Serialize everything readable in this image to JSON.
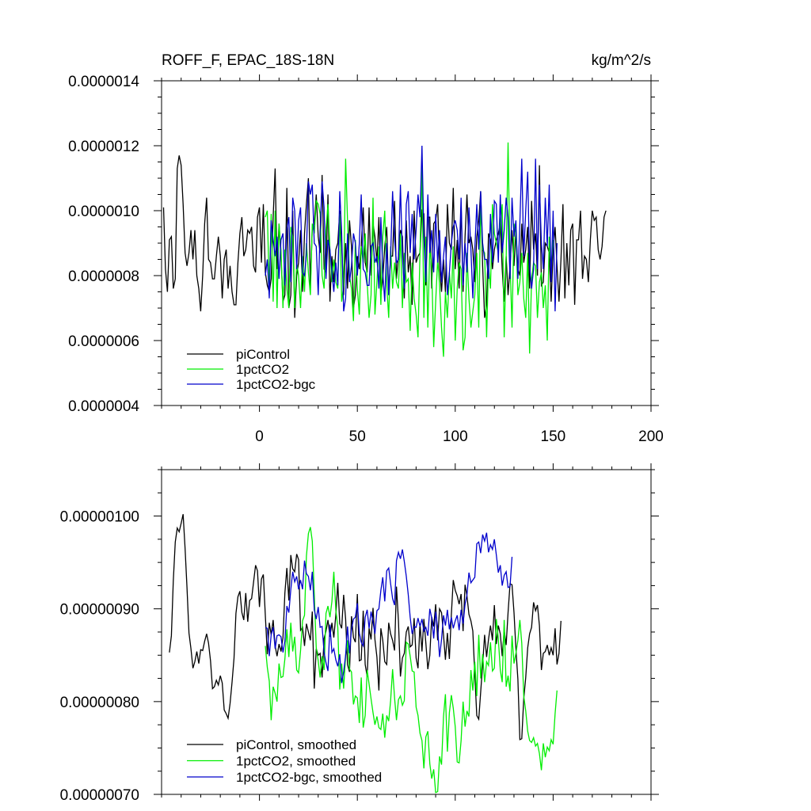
{
  "header": {
    "title": "ROFF_F, EPAC_18S-18N",
    "units": "kg/m^2/s"
  },
  "chart_data": [
    {
      "type": "line",
      "title": "ROFF_F, EPAC_18S-18N",
      "units": "kg/m^2/s",
      "xlim": [
        -50,
        200
      ],
      "ylim": [
        4e-07,
        1.4e-06
      ],
      "x_ticks": [
        0,
        50,
        100,
        150,
        200
      ],
      "x_tick_labels": [
        "0",
        "50",
        "100",
        "150",
        "200"
      ],
      "y_ticks": [
        4e-07,
        6e-07,
        8e-07,
        1e-06,
        1.2e-06,
        1.4e-06
      ],
      "y_tick_labels": [
        "0.0000004",
        "0.0000006",
        "0.0000008",
        "0.0000010",
        "0.0000012",
        "0.0000014"
      ],
      "legend_position": "bottom-left",
      "series": [
        {
          "name": "piControl",
          "color": "#000000",
          "x_start": -49,
          "x_step": 1,
          "values": [
            10.1,
            8.2,
            7.5,
            9.1,
            9.2,
            7.6,
            7.9,
            11.3,
            11.7,
            11.4,
            10.2,
            8.7,
            8.3,
            8.7,
            9.4,
            8.5,
            9.4,
            8.0,
            7.6,
            6.9,
            8.0,
            9.6,
            10.4,
            8.5,
            8.4,
            7.9,
            7.9,
            8.6,
            9.2,
            8.6,
            7.3,
            8.5,
            8.8,
            7.6,
            8.3,
            7.5,
            7.1,
            7.1,
            8.4,
            9.3,
            9.8,
            8.6,
            8.8,
            9.4,
            9.3,
            9.5,
            8.3,
            8.1,
            9.8,
            10.1,
            8.4,
            10.2,
            8.1,
            7.7,
            7.5,
            7.9,
            9.8,
            11.3,
            8.2,
            9.6,
            8.6,
            7.2,
            7.4,
            10.7,
            7.0,
            7.4,
            10.0,
            6.7,
            8.0,
            8.4,
            9.4,
            7.5,
            9.3,
            10.2,
            11.0,
            7.6,
            9.5,
            9.6,
            10.5,
            9.2,
            8.7,
            11.1,
            8.2,
            8.1,
            10.5,
            7.2,
            8.6,
            7.8,
            8.8,
            9.0,
            10.0,
            9.0,
            7.4,
            9.0,
            7.6,
            9.7,
            8.9,
            7.0,
            7.4,
            8.6,
            8.2,
            8.9,
            10.1,
            8.4,
            8.1,
            10.1,
            8.0,
            9.6,
            9.2,
            8.4,
            9.8,
            7.4,
            7.9,
            8.9,
            9.5,
            7.4,
            8.6,
            8.6,
            10.3,
            7.9,
            8.6,
            9.4,
            9.2,
            7.3,
            9.7,
            8.1,
            8.6,
            7.1,
            10.0,
            8.4,
            8.6,
            8.7,
            10.0,
            9.9,
            7.7,
            9.8,
            9.8,
            7.6,
            9.6,
            9.7,
            10.2,
            8.3,
            7.5,
            8.5,
            7.5,
            10.2,
            9.0,
            8.8,
            10.7,
            8.2,
            9.1,
            7.6,
            10.2,
            7.5,
            9.2,
            10.5,
            9.0,
            9.2,
            8.8,
            7.8,
            9.2,
            9.7,
            10.6,
            8.3,
            6.7,
            7.1,
            9.3,
            9.1,
            8.2,
            8.8,
            9.1,
            9.3,
            9.6,
            8.2,
            7.2,
            8.6,
            7.4,
            8.3,
            9.4,
            8.3,
            9.4,
            8.2,
            8.0,
            9.6,
            8.4,
            8.8,
            9.5,
            7.6,
            10.3,
            8.8,
            9.3,
            8.0,
            11.4,
            7.7,
            7.8,
            9.0,
            8.9,
            8.7,
            7.2,
            8.8,
            9.5,
            8.3,
            7.2,
            8.5,
            10.2,
            7.3,
            9.0,
            7.7,
            9.4,
            9.6,
            7.1,
            9.1,
            9.1,
            10.0,
            7.9,
            8.6,
            8.5,
            7.8,
            9.1,
            10.0,
            9.7,
            9.8,
            8.8,
            8.5,
            8.9,
            9.8,
            10.0
          ],
          "note": "values in units of 1e-7 kg/m^2/s"
        },
        {
          "name": "1pctCO2",
          "color": "#00ee00",
          "x_start": 3,
          "x_step": 1,
          "values": [
            9.8,
            10.0,
            7.5,
            9.9,
            7.2,
            10.0,
            7.0,
            9.6,
            8.8,
            7.0,
            8.8,
            7.6,
            7.0,
            9.5,
            9.2,
            7.0,
            8.4,
            8.0,
            7.0,
            8.6,
            7.5,
            9.0,
            8.1,
            7.4,
            9.6,
            9.3,
            10.3,
            10.2,
            9.9,
            8.0,
            7.6,
            9.4,
            10.2,
            8.8,
            7.8,
            8.5,
            7.8,
            7.6,
            9.9,
            7.2,
            7.7,
            11.6,
            9.7,
            8.0,
            7.6,
            6.6,
            9.1,
            7.6,
            6.8,
            8.9,
            8.4,
            9.3,
            7.8,
            6.7,
            7.4,
            10.4,
            6.8,
            7.8,
            8.9,
            7.1,
            9.2,
            10.0,
            7.7,
            6.7,
            8.9,
            7.6,
            8.4,
            7.8,
            7.6,
            9.3,
            7.0,
            8.7,
            7.8,
            7.9,
            6.3,
            8.4,
            7.3,
            6.8,
            6.1,
            8.7,
            11.4,
            6.7,
            9.2,
            6.4,
            8.9,
            8.2,
            5.8,
            7.2,
            8.5,
            7.7,
            6.4,
            5.5,
            7.5,
            6.7,
            8.1,
            7.3,
            8.9,
            6.0,
            7.6,
            8.4,
            8.2,
            5.7,
            6.1,
            8.7,
            7.3,
            6.4,
            6.9,
            7.4,
            8.7,
            6.4,
            10.2,
            8.8,
            8.7,
            6.1,
            8.3,
            7.6,
            10.2,
            9.3,
            9.0,
            8.7,
            9.6,
            10.2,
            6.1,
            8.5,
            12.1,
            8.4,
            6.4,
            9.6,
            9.3,
            7.4,
            7.8,
            8.7,
            7.3,
            6.7,
            8.7,
            5.6,
            7.9,
            8.4,
            8.3,
            6.7,
            7.8,
            8.1,
            7.0,
            7.7,
            6.0,
            9.2,
            8.2,
            9.1
          ]
        },
        {
          "name": "1pctCO2-bgc",
          "color": "#0000cc",
          "x_start": 3,
          "x_step": 1,
          "values": [
            8.0,
            8.5,
            7.3,
            9.7,
            9.1,
            8.6,
            9.2,
            7.9,
            9.1,
            9.3,
            7.7,
            9.4,
            9.8,
            7.8,
            10.4,
            10.0,
            8.2,
            9.7,
            10.1,
            8.1,
            8.0,
            8.7,
            10.9,
            10.5,
            10.8,
            9.0,
            8.9,
            7.4,
            9.4,
            10.9,
            10.1,
            7.9,
            9.1,
            8.8,
            8.1,
            7.5,
            8.4,
            7.7,
            10.6,
            9.3,
            6.9,
            7.3,
            9.3,
            7.8,
            8.3,
            9.3,
            9.0,
            8.0,
            9.0,
            10.5,
            8.2,
            8.1,
            7.7,
            7.7,
            8.9,
            9.0,
            8.4,
            8.6,
            7.6,
            9.8,
            8.1,
            7.2,
            9.0,
            7.4,
            8.6,
            10.6,
            9.1,
            8.4,
            8.5,
            10.8,
            8.6,
            7.6,
            10.2,
            10.6,
            8.7,
            9.9,
            8.5,
            9.4,
            10.5,
            9.8,
            12.0,
            9.2,
            7.8,
            10.5,
            8.7,
            9.4,
            8.1,
            9.9,
            8.4,
            9.4,
            7.8,
            8.6,
            9.2,
            7.4,
            8.1,
            9.0,
            9.5,
            9.7,
            9.4,
            8.5,
            10.4,
            7.7,
            9.0,
            8.1,
            10.1,
            8.8,
            7.3,
            8.8,
            10.2,
            8.8,
            10.6,
            9.0,
            8.5,
            8.5,
            7.9,
            9.9,
            8.4,
            10.3,
            10.2,
            8.4,
            10.5,
            8.7,
            9.4,
            10.4,
            9.8,
            7.9,
            10.4,
            9.2,
            9.7,
            7.9,
            9.6,
            11.6,
            8.6,
            10.0,
            11.2,
            8.3,
            7.6,
            8.2,
            11.6,
            8.2,
            10.8,
            9.0,
            8.2,
            10.4,
            8.9,
            10.8,
            7.8,
            10.0,
            6.9,
            9.0
          ]
        }
      ]
    },
    {
      "type": "line",
      "title": "",
      "xlim": [
        -50,
        200
      ],
      "ylim": [
        7e-07,
        1.05e-06
      ],
      "x_ticks": [
        0,
        50,
        100,
        150,
        200
      ],
      "y_ticks": [
        7e-07,
        8e-07,
        9e-07,
        1e-06
      ],
      "y_tick_labels": [
        "0.00000070",
        "0.00000080",
        "0.00000090",
        "0.00000100"
      ],
      "legend_position": "bottom-left",
      "series": [
        {
          "name": "piControl, smoothed",
          "color": "#000000",
          "x_start": -46,
          "x_step": 1,
          "values": [
            8.53,
            8.71,
            9.3,
            9.72,
            9.87,
            9.83,
            9.92,
            10.02,
            9.65,
            9.23,
            8.74,
            8.57,
            8.36,
            8.43,
            8.54,
            8.41,
            8.56,
            8.55,
            8.65,
            8.73,
            8.63,
            8.44,
            8.14,
            8.16,
            8.23,
            8.18,
            8.28,
            8.2,
            7.91,
            7.87,
            7.82,
            7.98,
            8.21,
            8.47,
            8.95,
            9.13,
            9.19,
            8.96,
            8.88,
            9.17,
            8.86,
            9.09,
            9.11,
            9.29,
            9.47,
            9.41,
            9.02,
            9.32,
            9.37,
            8.93,
            8.51,
            8.85,
            8.72,
            8.88,
            8.6,
            8.49,
            8.62,
            8.54,
            8.69,
            9.17,
            9.44,
            9.09,
            9.58,
            9.43,
            9.4,
            9.59,
            9.53,
            8.77,
            8.8,
            8.6,
            8.84,
            8.75,
            8.66,
            8.97,
            8.14,
            8.57,
            8.5,
            8.52,
            8.26,
            8.68,
            8.76,
            8.88,
            8.7,
            8.85,
            8.69,
            8.93,
            9.28,
            8.84,
            8.79,
            9.15,
            8.89,
            8.4,
            8.32,
            8.92,
            8.69,
            8.64,
            9.16,
            8.44,
            8.45,
            8.98,
            8.4,
            8.27,
            8.79,
            8.67,
            9.01,
            8.67,
            8.48,
            8.12,
            8.79,
            8.66,
            8.43,
            8.4,
            8.85,
            8.73,
            8.66,
            8.55,
            9.24,
            8.87,
            8.27,
            8.47,
            8.52,
            8.75,
            8.81,
            8.59,
            8.61,
            8.9,
            8.47,
            8.36,
            8.84,
            8.54,
            8.89,
            8.63,
            8.35,
            8.5,
            8.91,
            8.81,
            9.05,
            8.66,
            9.0,
            8.96,
            8.72,
            8.45,
            8.74,
            8.46,
            8.94,
            9.31,
            9.2,
            9.14,
            9.05,
            9.16,
            8.76,
            9.26,
            9.14,
            8.94,
            8.87,
            8.76,
            8.29,
            7.85,
            7.81,
            8.1,
            8.4,
            8.72,
            8.48,
            8.67,
            8.82,
            8.66,
            9.04,
            8.62,
            8.82,
            8.73,
            8.49,
            8.77,
            8.61,
            8.96,
            9.27,
            9.26,
            8.96,
            8.57,
            8.24,
            7.59,
            7.6,
            8.03,
            8.26,
            8.58,
            8.73,
            8.8,
            9.07,
            8.98,
            9.04,
            8.82,
            8.34,
            8.52,
            8.54,
            8.61,
            8.5,
            8.58,
            8.5,
            8.79,
            8.4,
            8.52,
            8.87
          ]
        },
        {
          "name": "1pctCO2, smoothed",
          "color": "#00ee00",
          "x_start": 3,
          "x_step": 1,
          "values": [
            8.6,
            8.37,
            8.22,
            7.8,
            8.16,
            8.09,
            8.0,
            8.41,
            8.26,
            8.27,
            8.46,
            8.78,
            8.48,
            8.85,
            8.54,
            8.7,
            8.34,
            8.31,
            8.55,
            8.87,
            8.93,
            9.57,
            9.81,
            9.88,
            9.73,
            9.16,
            8.58,
            8.44,
            8.26,
            8.49,
            8.34,
            8.95,
            9.03,
            8.91,
            9.08,
            9.4,
            8.99,
            8.8,
            8.13,
            8.41,
            8.14,
            8.5,
            8.66,
            8.35,
            8.32,
            7.97,
            8.06,
            8.04,
            7.77,
            8.26,
            7.72,
            7.85,
            8.34,
            8.19,
            8.03,
            7.88,
            7.75,
            7.84,
            7.72,
            7.7,
            7.87,
            7.61,
            7.85,
            7.79,
            8.01,
            8.35,
            8.04,
            7.8,
            8.02,
            8.06,
            7.96,
            8.01,
            8.64,
            8.62,
            8.49,
            8.33,
            8.32,
            7.94,
            7.85,
            7.66,
            7.58,
            7.28,
            7.62,
            7.68,
            7.33,
            7.17,
            7.27,
            7.02,
            7.03,
            7.41,
            7.32,
            7.84,
            8.08,
            7.46,
            7.88,
            8.07,
            7.93,
            7.73,
            7.35,
            7.34,
            7.58,
            8.0,
            7.73,
            7.9,
            7.84,
            8.34,
            8.12,
            8.43,
            8.06,
            8.72,
            8.25,
            8.51,
            8.21,
            8.43,
            8.39,
            8.64,
            8.33,
            8.36,
            8.89,
            8.68,
            8.34,
            8.21,
            8.88,
            8.16,
            8.28,
            8.11,
            8.71,
            8.41,
            8.52,
            8.66,
            8.88,
            8.63,
            8.06,
            7.9,
            7.68,
            7.58,
            7.56,
            7.61,
            7.52,
            7.55,
            7.44,
            7.26,
            7.55,
            7.4,
            7.51,
            7.47,
            7.59,
            7.54,
            7.87,
            8.12
          ]
        },
        {
          "name": "1pctCO2-bgc, smoothed",
          "color": "#0000cc",
          "x_start": 3,
          "x_step": 1,
          "values": [
            8.8,
            8.79,
            8.49,
            8.72,
            8.8,
            8.57,
            8.71,
            8.72,
            8.7,
            8.53,
            8.65,
            9.03,
            8.96,
            9.21,
            9.4,
            9.29,
            9.35,
            9.21,
            9.31,
            9.21,
            9.52,
            9.38,
            9.35,
            9.2,
            9.4,
            8.99,
            8.89,
            9.02,
            8.8,
            8.81,
            8.53,
            8.42,
            8.33,
            8.83,
            8.53,
            8.57,
            8.45,
            8.38,
            8.51,
            8.2,
            8.32,
            8.5,
            8.81,
            8.52,
            8.78,
            8.89,
            8.91,
            9.06,
            8.74,
            8.64,
            8.6,
            8.91,
            8.99,
            8.79,
            8.97,
            8.86,
            8.73,
            8.98,
            9.0,
            9.2,
            9.34,
            9.08,
            9.41,
            9.44,
            9.27,
            9.11,
            9.04,
            9.52,
            9.61,
            9.54,
            9.64,
            9.51,
            9.35,
            9.15,
            8.91,
            8.73,
            8.81,
            8.8,
            8.9,
            8.81,
            8.89,
            8.76,
            8.8,
            8.71,
            9.0,
            8.9,
            8.68,
            8.97,
            8.79,
            8.48,
            8.67,
            8.93,
            8.82,
            8.99,
            8.78,
            8.91,
            8.79,
            8.87,
            8.93,
            8.77,
            8.99,
            8.84,
            9.05,
            9.15,
            9.39,
            9.28,
            9.31,
            9.34,
            9.7,
            9.72,
            9.6,
            9.8,
            9.73,
            9.82,
            9.61,
            9.69,
            9.64,
            9.75,
            9.58,
            9.39,
            9.47,
            9.25,
            9.36,
            9.4,
            9.23,
            9.24,
            9.56
          ]
        }
      ]
    }
  ]
}
